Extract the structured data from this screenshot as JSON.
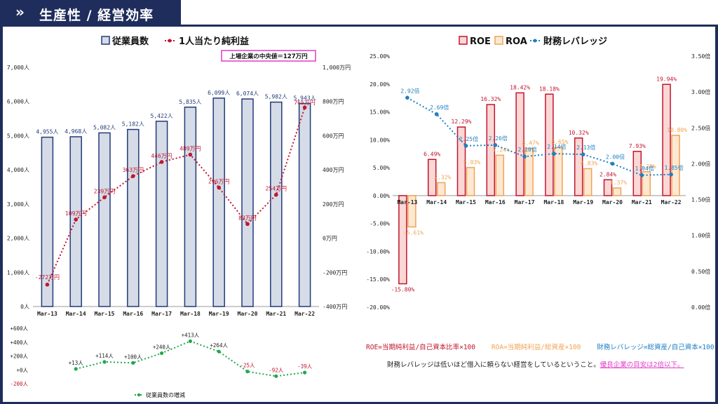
{
  "header": {
    "chevron": "»",
    "title": "生産性 / 経営効率"
  },
  "colors": {
    "navy": "#1f2d5c",
    "bar_fill": "#d5dce7",
    "bar_stroke": "#233a7a",
    "profit_line": "#c0162e",
    "green": "#22a84b",
    "roe": "#c0162e",
    "roe_fill": "#fbd7d5",
    "roa": "#f0a454",
    "roa_fill": "#fde8d3",
    "leverage": "#1f7fc1",
    "median_box": "#e23ac9"
  },
  "median_box": "上場企業の中央値＝127万円",
  "formula": {
    "roe": "ROE=当期純利益/自己資本比率×100",
    "roa": "ROA=当期純利益/総資産×100",
    "lev": "財務レバレッジ=総資産/自己資本×100"
  },
  "note": {
    "text": "財務レバレッジは低いほど借入に頼らない経営をしているということ。",
    "highlight": "優良企業の目安は2倍以下。"
  },
  "chart_data": [
    {
      "type": "bar",
      "legend": [
        "従業員数",
        "1人当たり純利益"
      ],
      "categories": [
        "Mar-13",
        "Mar-14",
        "Mar-15",
        "Mar-16",
        "Mar-17",
        "Mar-18",
        "Mar-19",
        "Mar-20",
        "Mar-21",
        "Mar-22"
      ],
      "series": [
        {
          "name": "従業員数",
          "kind": "bar",
          "values": [
            4955,
            4968,
            5082,
            5182,
            5422,
            5835,
            6099,
            6074,
            5982,
            5943
          ],
          "labels": [
            "4,955人",
            "4,968人",
            "5,082人",
            "5,182人",
            "5,422人",
            "5,835人",
            "6,099人",
            "6,074人",
            "5,982人",
            "5,943人"
          ]
        },
        {
          "name": "1人当たり純利益",
          "kind": "line",
          "values": [
            -272,
            109,
            239,
            363,
            446,
            489,
            296,
            83,
            254,
            765
          ],
          "labels": [
            "-272万円",
            "109万円",
            "239万円",
            "363万円",
            "446万円",
            "489万円",
            "296万円",
            "83万円",
            "254万円",
            "765万円"
          ]
        }
      ],
      "ylim": [
        0,
        7000
      ],
      "yticks": [
        "0人",
        "1,000人",
        "2,000人",
        "3,000人",
        "4,000人",
        "5,000人",
        "6,000人",
        "7,000人"
      ],
      "y2lim": [
        -400,
        1000
      ],
      "y2ticks": [
        "-400万円",
        "-200万円",
        "0万円",
        "200万円",
        "400万円",
        "600万円",
        "800万円",
        "1,000万円"
      ]
    },
    {
      "type": "line",
      "legend": [
        "従業員数の増減"
      ],
      "categories": [
        "Mar-14",
        "Mar-15",
        "Mar-16",
        "Mar-17",
        "Mar-18",
        "Mar-19",
        "Mar-20",
        "Mar-21",
        "Mar-22"
      ],
      "series": [
        {
          "name": "従業員数の増減",
          "values": [
            13,
            114,
            100,
            240,
            413,
            264,
            -25,
            -92,
            -39
          ],
          "labels": [
            "+13人",
            "+114人",
            "+100人",
            "+240人",
            "+413人",
            "+264人",
            "-25人",
            "-92人",
            "-39人"
          ]
        }
      ],
      "ylim": [
        -200,
        600
      ],
      "yticks": [
        "-200人",
        "+0人",
        "+200人",
        "+400人",
        "+600人"
      ]
    },
    {
      "type": "bar",
      "legend": [
        "ROE",
        "ROA",
        "財務レバレッジ"
      ],
      "categories": [
        "Mar-13",
        "Mar-14",
        "Mar-15",
        "Mar-16",
        "Mar-17",
        "Mar-18",
        "Mar-19",
        "Mar-20",
        "Mar-21",
        "Mar-22"
      ],
      "series": [
        {
          "name": "ROE",
          "kind": "bar",
          "values": [
            -15.8,
            6.49,
            12.29,
            16.32,
            18.42,
            18.18,
            10.32,
            2.84,
            7.93,
            19.94
          ],
          "labels": [
            "-15.80%",
            "6.49%",
            "12.29%",
            "16.32%",
            "18.42%",
            "18.18%",
            "10.32%",
            "2.84%",
            "7.93%",
            "19.94%"
          ]
        },
        {
          "name": "ROA",
          "kind": "bar",
          "values": [
            -5.61,
            2.32,
            5.03,
            7.24,
            8.47,
            8.65,
            4.83,
            1.37,
            4.28,
            10.8
          ],
          "labels": [
            "-5.61%",
            "2.32%",
            "5.03%",
            "7.24%",
            "8.47%",
            "8.65%",
            "4.83%",
            "1.37%",
            "4.28%",
            "10.80%"
          ]
        },
        {
          "name": "財務レバレッジ",
          "kind": "line",
          "values": [
            2.92,
            2.69,
            2.25,
            2.26,
            2.1,
            2.14,
            2.13,
            2.0,
            1.84,
            1.85
          ],
          "labels": [
            "2.92倍",
            "2.69倍",
            "2.25倍",
            "2.26倍",
            "2.10倍",
            "2.14倍",
            "2.13倍",
            "2.00倍",
            "1.84倍",
            "1.85倍"
          ]
        }
      ],
      "ylim": [
        -20,
        25
      ],
      "yticks": [
        "-20.00%",
        "-15.00%",
        "-10.00%",
        "-5.00%",
        "0.00%",
        "5.00%",
        "10.00%",
        "15.00%",
        "20.00%",
        "25.00%"
      ],
      "y2lim": [
        0,
        3.5
      ],
      "y2ticks": [
        "0.00倍",
        "0.50倍",
        "1.00倍",
        "1.50倍",
        "2.00倍",
        "2.50倍",
        "3.00倍",
        "3.50倍"
      ]
    }
  ]
}
